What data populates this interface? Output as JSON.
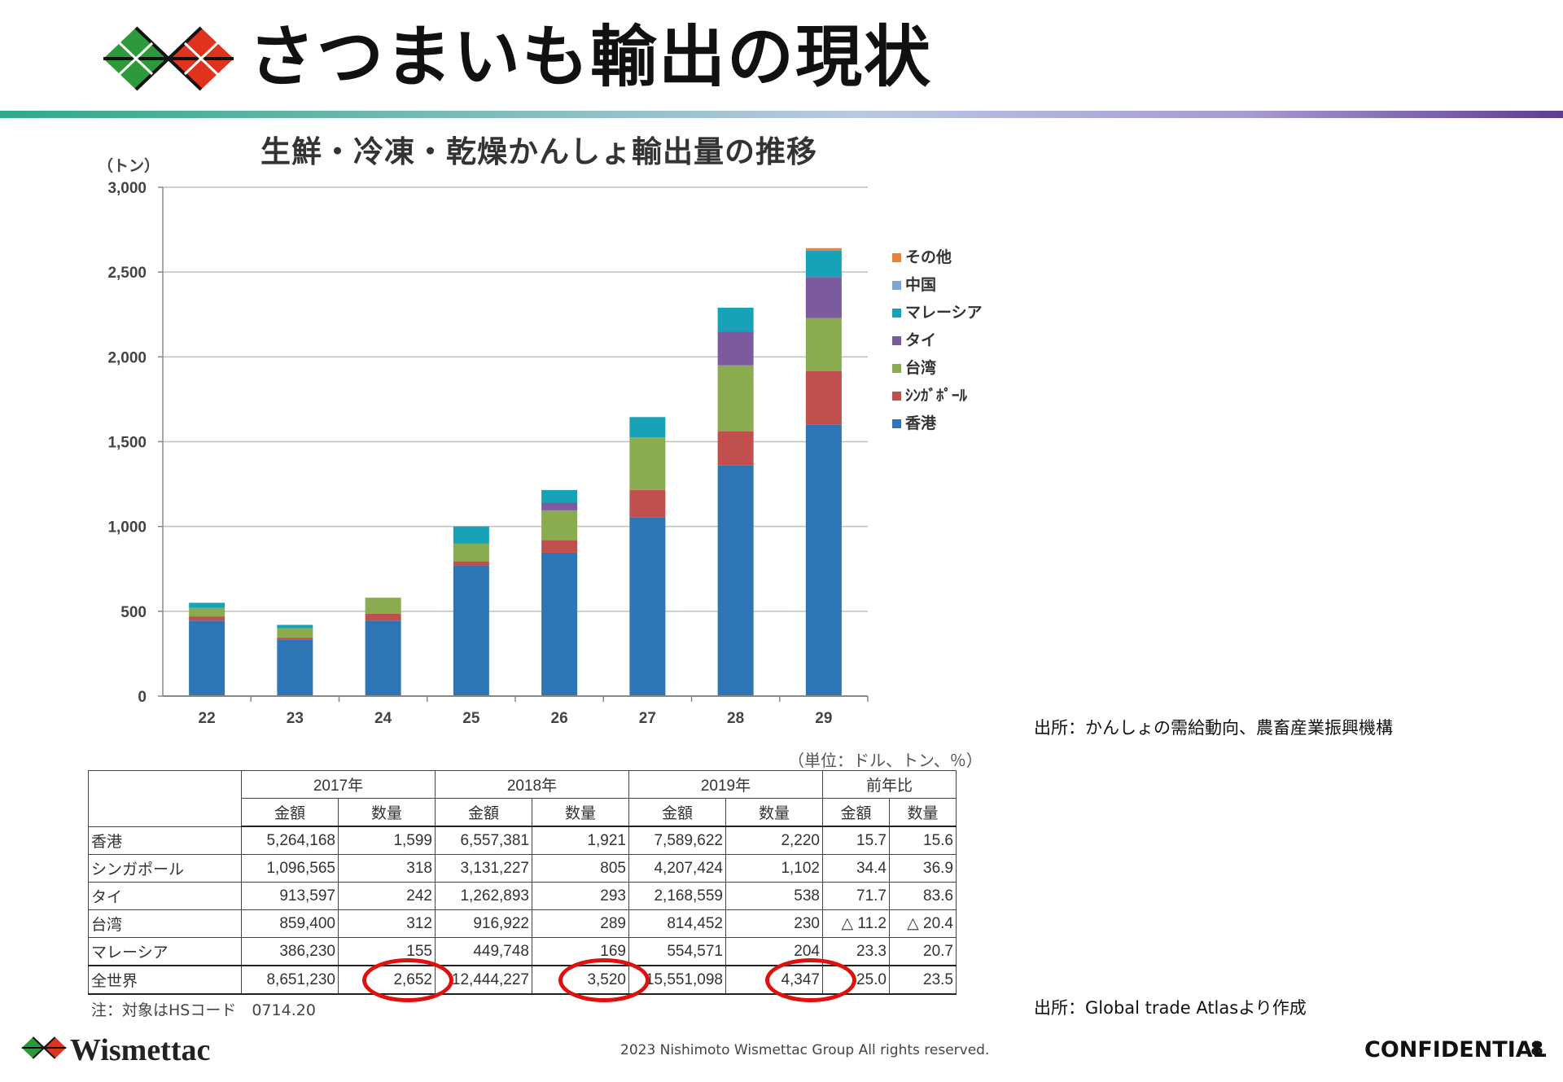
{
  "header": {
    "title": "さつまいも輸出の現状"
  },
  "chart_data": {
    "type": "bar",
    "stacked": true,
    "title": "生鮮・冷凍・乾燥かんしょ輸出量の推移",
    "ylabel": "（トン）",
    "xlabel": "",
    "ylim": [
      0,
      3000
    ],
    "yticks": [
      "0",
      "500",
      "1,000",
      "1,500",
      "2,000",
      "2,500",
      "3,000"
    ],
    "ytick_values": [
      0,
      500,
      1000,
      1500,
      2000,
      2500,
      3000
    ],
    "categories": [
      "22",
      "23",
      "24",
      "25",
      "26",
      "27",
      "28",
      "29"
    ],
    "grid": true,
    "legend_position": "right",
    "series": [
      {
        "name": "香港",
        "color": "#2e75b6",
        "values": [
          445,
          335,
          445,
          770,
          845,
          1055,
          1360,
          1599
        ]
      },
      {
        "name": "シンガポール",
        "color": "#c0504d",
        "values": [
          25,
          10,
          40,
          25,
          75,
          160,
          200,
          318
        ]
      },
      {
        "name": "台湾",
        "color": "#8aab4f",
        "values": [
          50,
          55,
          95,
          105,
          175,
          310,
          390,
          312
        ]
      },
      {
        "name": "タイ",
        "color": "#7b5a9e",
        "values": [
          0,
          0,
          0,
          0,
          45,
          0,
          200,
          242
        ]
      },
      {
        "name": "マレーシア",
        "color": "#17a2b8",
        "values": [
          30,
          20,
          0,
          100,
          75,
          120,
          140,
          155
        ]
      },
      {
        "name": "中国",
        "color": "#7fa7d6",
        "values": [
          0,
          0,
          0,
          0,
          0,
          0,
          0,
          0
        ]
      },
      {
        "name": "その他",
        "color": "#e8823a",
        "values": [
          0,
          0,
          0,
          0,
          0,
          0,
          0,
          15
        ]
      }
    ],
    "legend_display": [
      {
        "label": "その他",
        "color": "#e8823a"
      },
      {
        "label": "中国",
        "color": "#7fa7d6"
      },
      {
        "label": "マレーシア",
        "color": "#17a2b8"
      },
      {
        "label": "タイ",
        "color": "#7b5a9e"
      },
      {
        "label": "台湾",
        "color": "#8aab4f"
      },
      {
        "label": "ｼﾝｶﾞﾎﾟｰﾙ",
        "color": "#c0504d"
      },
      {
        "label": "香港",
        "color": "#2e75b6"
      }
    ]
  },
  "sources": {
    "chart": "出所：かんしょの需給動向、農畜産業振興機構",
    "table": "出所：Global trade Atlasより作成"
  },
  "table": {
    "unit": "（単位：ドル、トン、％）",
    "years": [
      "2017年",
      "2018年",
      "2019年",
      "前年比"
    ],
    "subheaders": [
      "金額",
      "数量",
      "金額",
      "数量",
      "金額",
      "数量",
      "金額",
      "数量"
    ],
    "rows": [
      {
        "label": "香港",
        "cells": [
          "5,264,168",
          "1,599",
          "6,557,381",
          "1,921",
          "7,589,622",
          "2,220",
          "15.7",
          "15.6"
        ]
      },
      {
        "label": "シンガポール",
        "cells": [
          "1,096,565",
          "318",
          "3,131,227",
          "805",
          "4,207,424",
          "1,102",
          "34.4",
          "36.9"
        ]
      },
      {
        "label": "タイ",
        "cells": [
          "913,597",
          "242",
          "1,262,893",
          "293",
          "2,168,559",
          "538",
          "71.7",
          "83.6"
        ]
      },
      {
        "label": "台湾",
        "cells": [
          "859,400",
          "312",
          "916,922",
          "289",
          "814,452",
          "230",
          "△ 11.2",
          "△ 20.4"
        ]
      },
      {
        "label": "マレーシア",
        "cells": [
          "386,230",
          "155",
          "449,748",
          "169",
          "554,571",
          "204",
          "23.3",
          "20.7"
        ]
      }
    ],
    "world": {
      "label": "全世界",
      "cells": [
        "8,651,230",
        "2,652",
        "12,444,227",
        "3,520",
        "15,551,098",
        "4,347",
        "25.0",
        "23.5"
      ]
    },
    "note": "注：対象はHSコード　0714.20"
  },
  "footer": {
    "brand": "Wismettac",
    "copyright": "2023 Nishimoto Wismettac Group All rights reserved.",
    "confidential": "CONFIDENTIAL",
    "page": "8"
  }
}
